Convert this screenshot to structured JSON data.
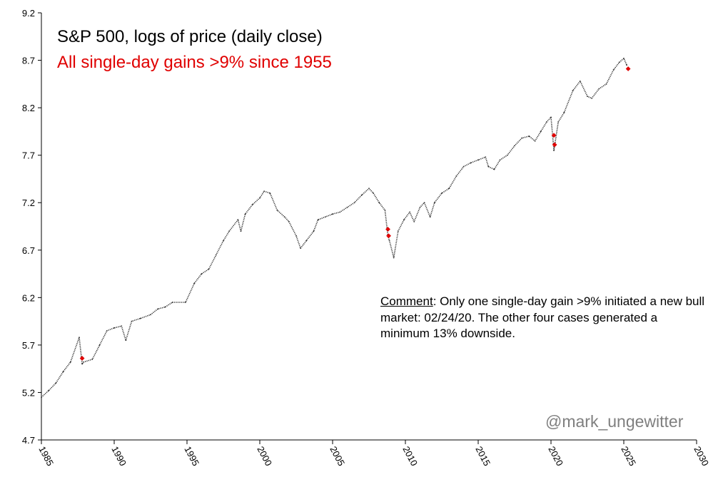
{
  "title": "S&P 500, logs of price (daily close)",
  "subtitle": "All single-day gains >9% since 1955",
  "comment_label": "Comment",
  "comment_text": ": Only one single-day gain >9% initiated a new bull market: 02/24/20. The other four cases generated a minimum 13% downside.",
  "watermark": "@mark_ungewitter",
  "colors": {
    "series": "#333333",
    "highlight": "#e00000",
    "axis": "#000000",
    "watermark": "#7f7f7f"
  },
  "chart_data": {
    "type": "line",
    "ylim": [
      4.7,
      9.2
    ],
    "xlim": [
      1985,
      2030
    ],
    "yticks": [
      "4.7",
      "5.2",
      "5.7",
      "6.2",
      "6.7",
      "7.2",
      "7.7",
      "8.2",
      "8.7",
      "9.2"
    ],
    "xticks": [
      "1985",
      "1990",
      "1995",
      "2000",
      "2005",
      "2010",
      "2015",
      "2020",
      "2025",
      "2030"
    ],
    "series": [
      {
        "values_x": [
          1985.0,
          1985.5,
          1986.0,
          1986.5,
          1987.0,
          1987.6,
          1987.8,
          1987.9,
          1988.5,
          1989.0,
          1989.5,
          1990.0,
          1990.5,
          1990.8,
          1991.2,
          1991.8,
          1992.5,
          1993.0,
          1993.5,
          1994.0,
          1994.9,
          1995.5,
          1996.0,
          1996.5,
          1997.0,
          1997.5,
          1997.9,
          1998.5,
          1998.7,
          1999.0,
          1999.5,
          2000.0,
          2000.3,
          2000.7,
          2001.2,
          2001.7,
          2002.0,
          2002.5,
          2002.8,
          2003.2,
          2003.7,
          2004.0,
          2004.5,
          2005.0,
          2005.5,
          2006.0,
          2006.5,
          2007.0,
          2007.5,
          2007.8,
          2008.2,
          2008.6,
          2008.8,
          2008.9,
          2009.2,
          2009.5,
          2009.9,
          2010.3,
          2010.6,
          2011.0,
          2011.3,
          2011.7,
          2012.0,
          2012.5,
          2013.0,
          2013.5,
          2014.0,
          2014.5,
          2015.0,
          2015.5,
          2015.7,
          2016.1,
          2016.5,
          2017.0,
          2017.5,
          2018.0,
          2018.5,
          2018.9,
          2019.3,
          2019.7,
          2020.0,
          2020.2,
          2020.5,
          2020.9,
          2021.5,
          2022.0,
          2022.5,
          2022.8,
          2023.3,
          2023.8,
          2024.3,
          2024.7,
          2025.0,
          2025.2
        ],
        "values_y": [
          5.15,
          5.22,
          5.3,
          5.42,
          5.52,
          5.78,
          5.5,
          5.52,
          5.55,
          5.7,
          5.85,
          5.88,
          5.9,
          5.75,
          5.95,
          5.98,
          6.02,
          6.08,
          6.1,
          6.15,
          6.15,
          6.35,
          6.45,
          6.5,
          6.65,
          6.8,
          6.9,
          7.02,
          6.9,
          7.08,
          7.18,
          7.25,
          7.32,
          7.3,
          7.12,
          7.05,
          7.0,
          6.85,
          6.72,
          6.8,
          6.9,
          7.02,
          7.05,
          7.08,
          7.1,
          7.15,
          7.2,
          7.28,
          7.35,
          7.3,
          7.2,
          7.12,
          6.85,
          6.8,
          6.62,
          6.9,
          7.02,
          7.1,
          7.0,
          7.15,
          7.2,
          7.05,
          7.2,
          7.3,
          7.35,
          7.48,
          7.58,
          7.62,
          7.65,
          7.68,
          7.58,
          7.55,
          7.65,
          7.7,
          7.8,
          7.88,
          7.9,
          7.85,
          7.95,
          8.05,
          8.1,
          7.75,
          8.05,
          8.15,
          8.38,
          8.48,
          8.32,
          8.3,
          8.4,
          8.45,
          8.6,
          8.68,
          8.72,
          8.65
        ]
      },
      {
        "name": "All single-day gains >9% since 1955",
        "values_x": [
          1987.8,
          2008.8,
          2008.85,
          2020.2,
          2020.25,
          2025.3
        ],
        "values_y": [
          5.56,
          6.92,
          6.85,
          7.91,
          7.81,
          8.61
        ]
      }
    ]
  }
}
